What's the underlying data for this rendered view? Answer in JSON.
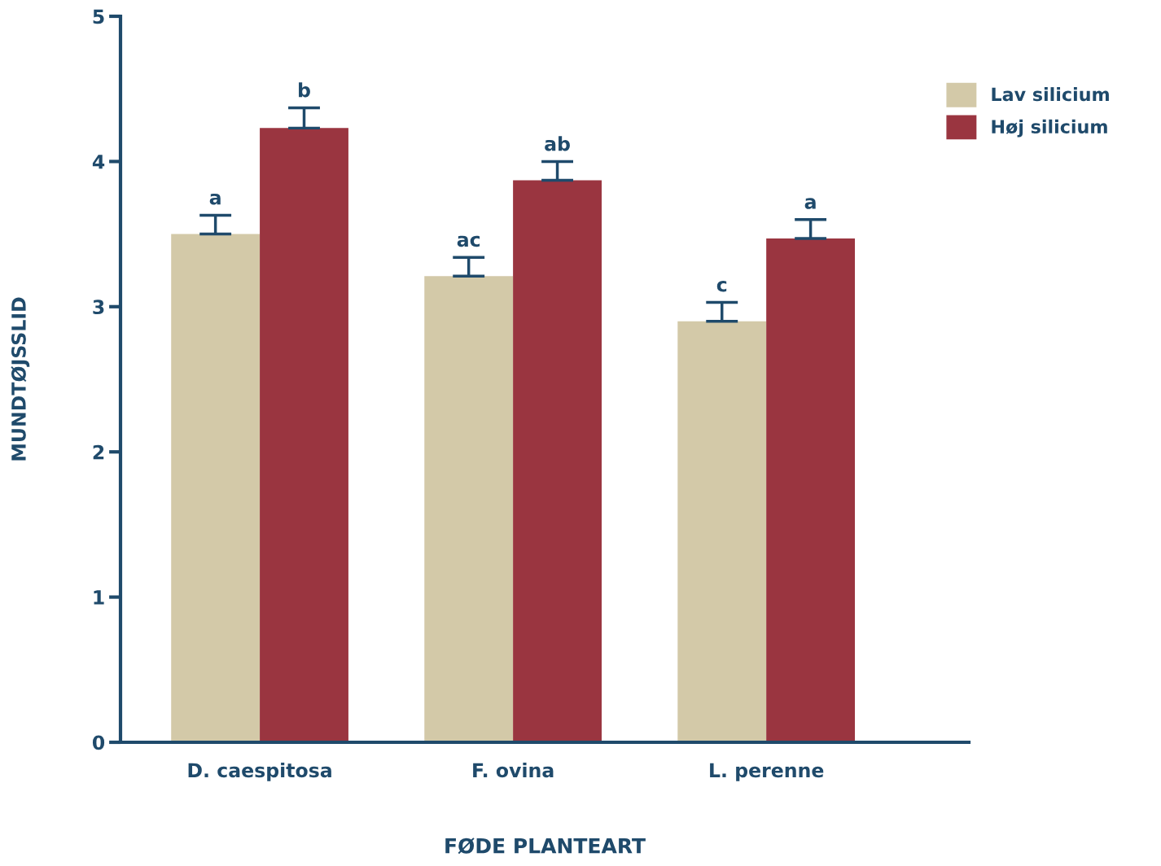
{
  "chart_data": {
    "type": "bar",
    "xlabel": "FØDE PLANTEART",
    "ylabel": "MUNDTØJSSLID",
    "categories": [
      "D. caespitosa",
      "F. ovina",
      "L. perenne"
    ],
    "series": [
      {
        "name": "Lav silicium",
        "color": "#d3c9a8",
        "values": [
          3.5,
          3.21,
          2.9
        ],
        "errors": [
          0.13,
          0.13,
          0.13
        ]
      },
      {
        "name": "Høj silicium",
        "color": "#9a3540",
        "values": [
          4.23,
          3.87,
          3.47
        ],
        "errors": [
          0.14,
          0.13,
          0.13
        ]
      }
    ],
    "ylim": [
      0,
      5
    ],
    "yticks": [
      0,
      1,
      2,
      3,
      4,
      5
    ],
    "grid": false,
    "legend": "top right",
    "annotations": [
      "a",
      "b",
      "ac",
      "ab",
      "c",
      "a"
    ]
  }
}
